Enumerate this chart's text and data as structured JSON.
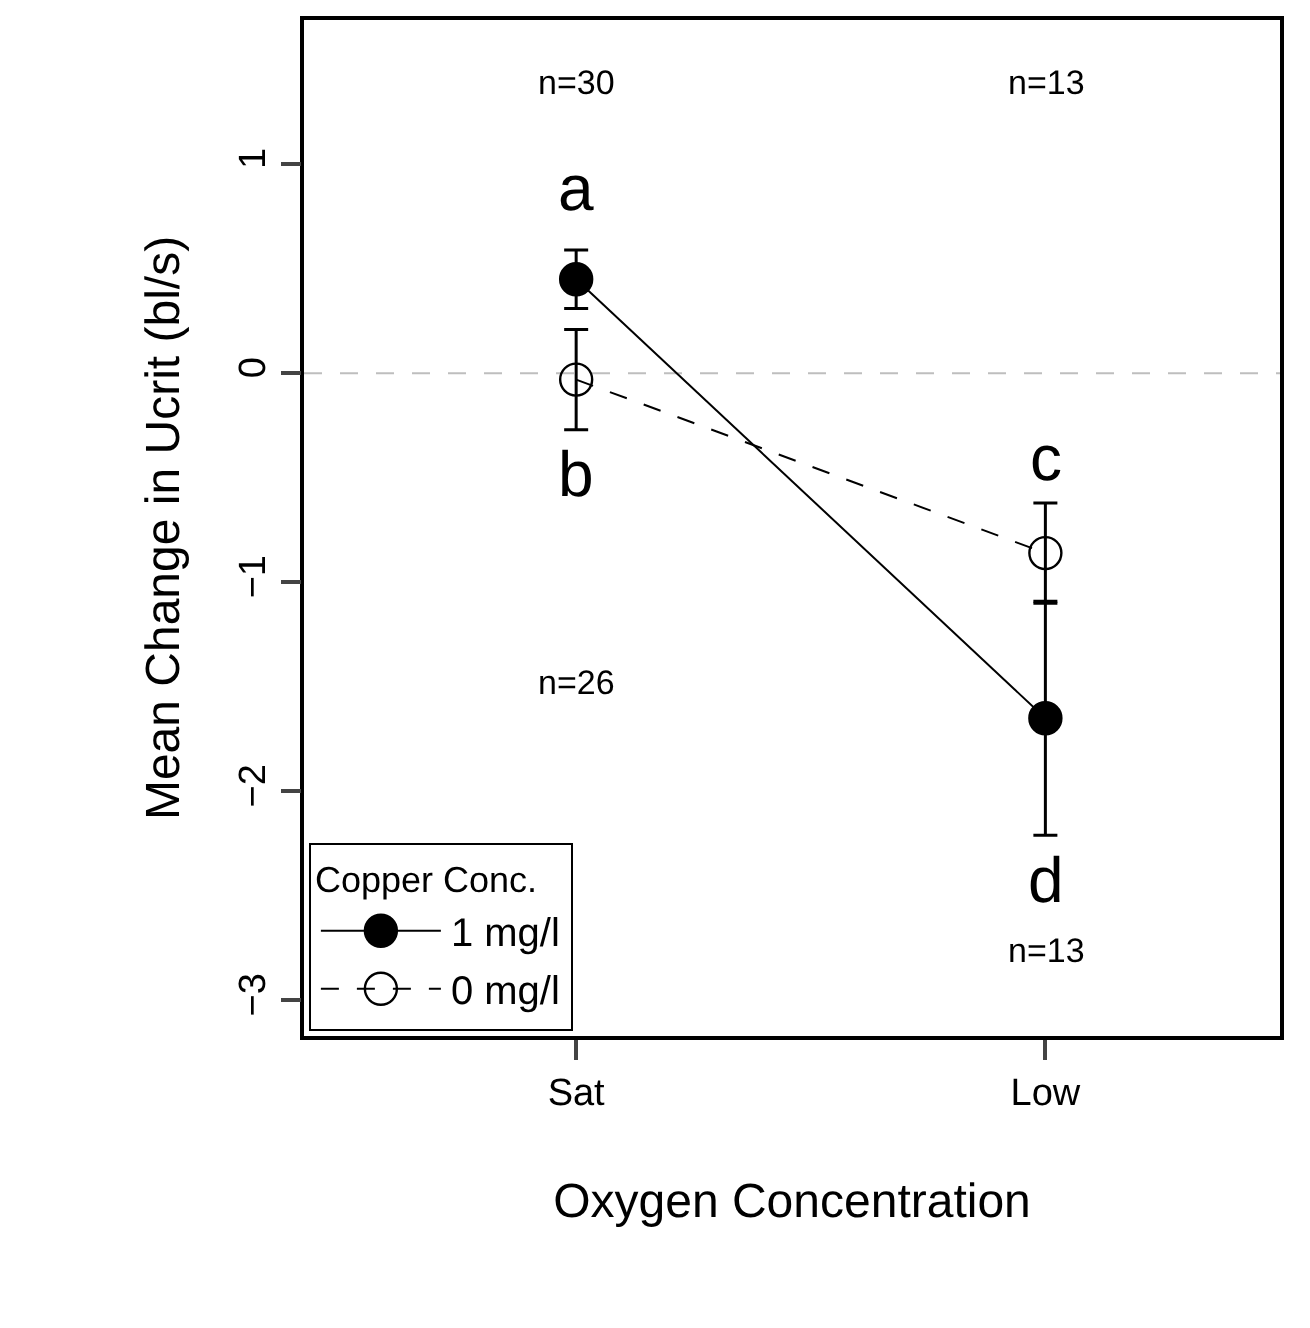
{
  "chart_data": {
    "type": "line",
    "xlabel": "Oxygen Concentration",
    "ylabel": "Mean Change in Ucrit (bl/s)",
    "legend_title": "Copper Conc.",
    "categories": [
      "Sat",
      "Low"
    ],
    "series": [
      {
        "name": "1 mg/l",
        "color": "#000000",
        "values": [
          0.45,
          -1.65
        ],
        "errors": [
          0.14,
          0.56
        ],
        "line_style": "solid",
        "marker": "circle"
      },
      {
        "name": "0 mg/l",
        "color": "#000000",
        "values": [
          -0.03,
          -0.86
        ],
        "errors": [
          0.24,
          0.24
        ],
        "line_style": "dashed",
        "marker": "circle-open"
      }
    ],
    "ylim": [
      -3.17,
      1.69
    ],
    "yticks": [
      -3,
      -2,
      -1,
      0,
      1
    ],
    "ref_lines": [
      {
        "axis": "y",
        "value": 0,
        "color": "#bebebe",
        "line_style": "dashed"
      }
    ],
    "annotations": [
      "a",
      "b",
      "c",
      "d",
      "n=30",
      "n=13",
      "n=26",
      "n=13"
    ],
    "grid": false,
    "legend": "bottom left"
  }
}
